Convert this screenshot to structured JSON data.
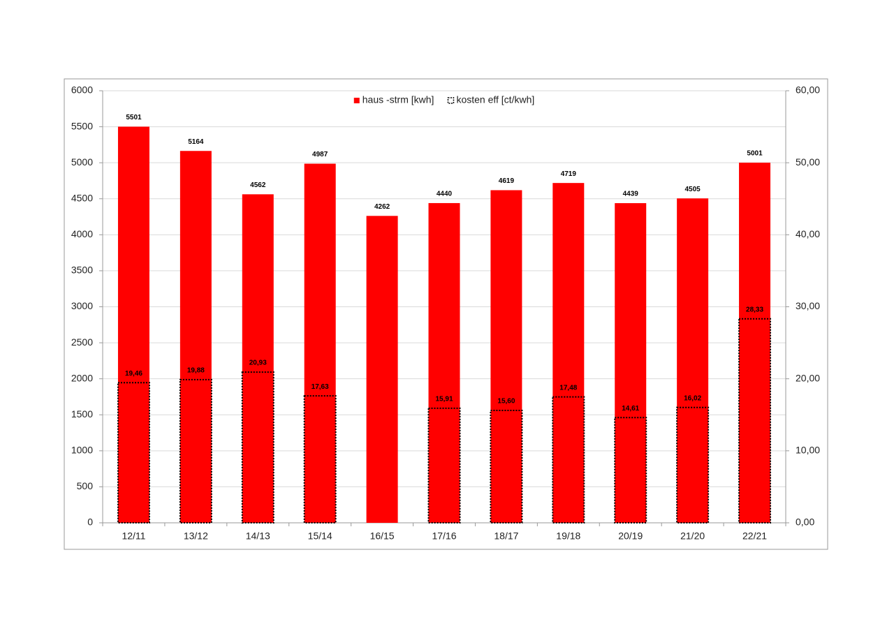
{
  "chart_data": {
    "type": "bar",
    "categories": [
      "12/11",
      "13/12",
      "14/13",
      "15/14",
      "16/15",
      "17/16",
      "18/17",
      "19/18",
      "20/19",
      "21/20",
      "22/21"
    ],
    "series": [
      {
        "name": "haus -strm [kwh]",
        "color": "#ff0000",
        "values": [
          5501,
          5164,
          4562,
          4987,
          4262,
          4440,
          4619,
          4719,
          4439,
          4505,
          5001
        ]
      },
      {
        "name": "kosten eff [ct/kwh]",
        "color": "#000000",
        "axis": "y2",
        "values": [
          19.46,
          19.88,
          20.93,
          17.63,
          null,
          15.91,
          15.6,
          17.48,
          14.61,
          16.02,
          28.33
        ],
        "value_labels": [
          "19,46",
          "19,88",
          "20,93",
          "17,63",
          null,
          "15,91",
          "15,60",
          "17,48",
          "14,61",
          "16,02",
          "28,33"
        ]
      }
    ],
    "ylim": [
      0,
      6000
    ],
    "yticks": [
      0,
      500,
      1000,
      1500,
      2000,
      2500,
      3000,
      3500,
      4000,
      4500,
      5000,
      5500,
      6000
    ],
    "y2lim": [
      0,
      60
    ],
    "y2ticks": [
      {
        "value": 0,
        "label": "0,00"
      },
      {
        "value": 10,
        "label": "10,00"
      },
      {
        "value": 20,
        "label": "20,00"
      },
      {
        "value": 30,
        "label": "30,00"
      },
      {
        "value": 40,
        "label": "40,00"
      },
      {
        "value": 50,
        "label": "50,00"
      },
      {
        "value": 60,
        "label": "60,00"
      }
    ],
    "grid": true,
    "legend": "top"
  }
}
